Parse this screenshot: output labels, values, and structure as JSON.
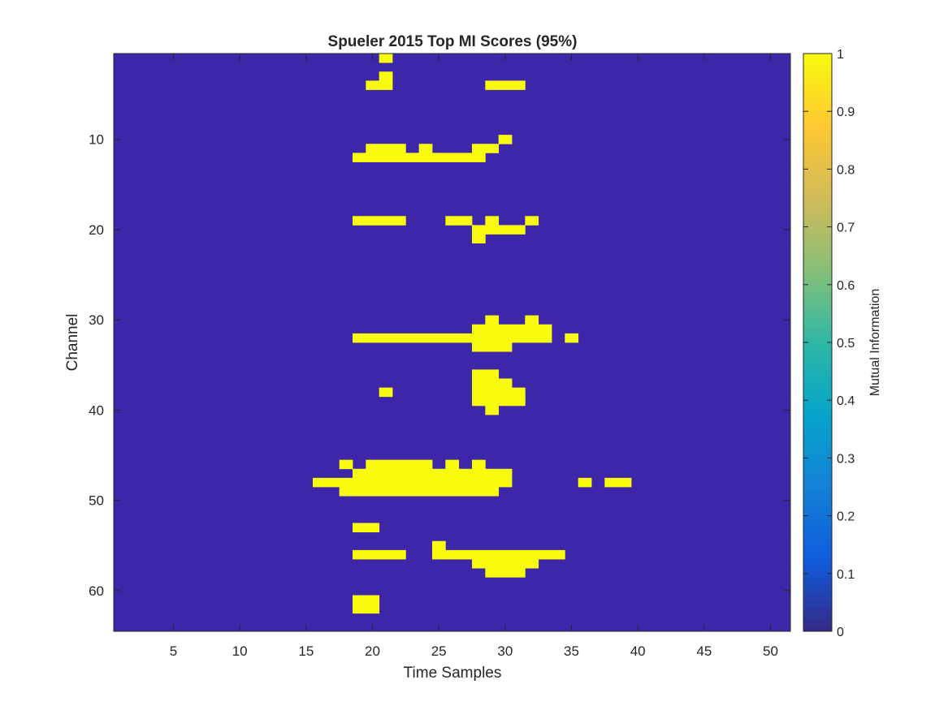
{
  "chart_data": {
    "type": "heatmap",
    "title": "Spueler 2015 Top MI Scores (95%)",
    "xlabel": "Time Samples",
    "ylabel": "Channel",
    "colorbar_label": "Mutual Information",
    "xlim": [
      0.5,
      51.5
    ],
    "ylim": [
      0.5,
      64.5
    ],
    "y_direction": "reversed (channel 1 at top)",
    "xticks": [
      5,
      10,
      15,
      20,
      25,
      30,
      35,
      40,
      45,
      50
    ],
    "yticks": [
      10,
      20,
      30,
      40,
      50,
      60
    ],
    "colorbar_range": [
      0,
      1
    ],
    "colorbar_ticks": [
      0,
      0.1,
      0.2,
      0.3,
      0.4,
      0.5,
      0.6,
      0.7,
      0.8,
      0.9,
      1
    ],
    "colormap": "parula",
    "background_value": 0,
    "cells_value_1_note": "each row lists [channel, start_time_sample, end_time_sample] where value = 1; all other cells = 0",
    "cells_value_1": [
      [
        1,
        21,
        21
      ],
      [
        3,
        21,
        21
      ],
      [
        4,
        20,
        21
      ],
      [
        4,
        29,
        31
      ],
      [
        10,
        30,
        30
      ],
      [
        11,
        20,
        22
      ],
      [
        11,
        24,
        24
      ],
      [
        11,
        28,
        29
      ],
      [
        12,
        19,
        28
      ],
      [
        19,
        19,
        22
      ],
      [
        19,
        26,
        27
      ],
      [
        19,
        29,
        29
      ],
      [
        19,
        32,
        32
      ],
      [
        20,
        28,
        31
      ],
      [
        21,
        28,
        28
      ],
      [
        30,
        29,
        29
      ],
      [
        30,
        32,
        32
      ],
      [
        31,
        28,
        33
      ],
      [
        32,
        19,
        33
      ],
      [
        32,
        35,
        35
      ],
      [
        33,
        28,
        30
      ],
      [
        36,
        28,
        29
      ],
      [
        37,
        28,
        30
      ],
      [
        38,
        21,
        21
      ],
      [
        38,
        28,
        31
      ],
      [
        39,
        28,
        31
      ],
      [
        40,
        29,
        29
      ],
      [
        46,
        18,
        18
      ],
      [
        46,
        20,
        24
      ],
      [
        46,
        26,
        26
      ],
      [
        46,
        28,
        28
      ],
      [
        47,
        19,
        30
      ],
      [
        48,
        16,
        30
      ],
      [
        48,
        36,
        36
      ],
      [
        48,
        38,
        39
      ],
      [
        49,
        18,
        29
      ],
      [
        53,
        19,
        20
      ],
      [
        55,
        25,
        25
      ],
      [
        56,
        19,
        22
      ],
      [
        56,
        25,
        34
      ],
      [
        57,
        28,
        32
      ],
      [
        58,
        29,
        31
      ],
      [
        61,
        19,
        20
      ],
      [
        62,
        19,
        20
      ]
    ]
  },
  "colors": {
    "low": "#3E26A8",
    "high": "#F9FB0E",
    "axes": "#262626",
    "parula_stops": [
      "#352A87",
      "#0F5CDD",
      "#1481D6",
      "#06A4CA",
      "#2EB7A4",
      "#87BF77",
      "#D1BB59",
      "#FEC832",
      "#F9FB0E"
    ]
  }
}
